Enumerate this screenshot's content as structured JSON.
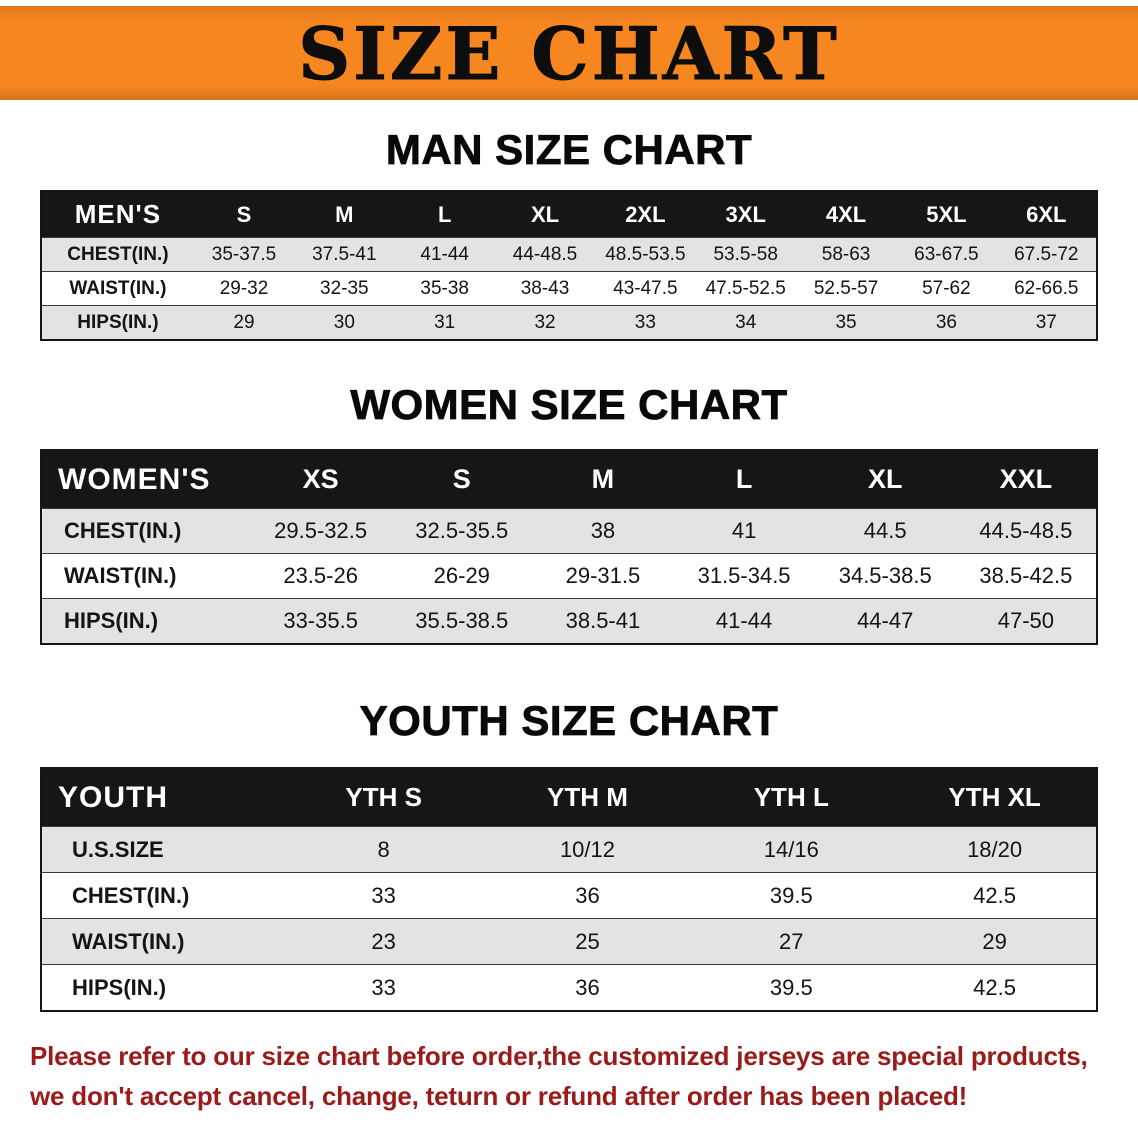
{
  "banner": {
    "title": "SIZE CHART"
  },
  "colors": {
    "banner_orange": "#f6861f",
    "header_black": "#161616",
    "row_shade": "#e3e3e3",
    "disclaimer_red": "#9b1a1a",
    "text_black": "#141414"
  },
  "sections": [
    {
      "kind": "men",
      "heading": "MAN SIZE CHART",
      "table": {
        "header": [
          "MEN'S",
          "S",
          "M",
          "L",
          "XL",
          "2XL",
          "3XL",
          "4XL",
          "5XL",
          "6XL"
        ],
        "rows": [
          {
            "label": "CHEST(IN.)",
            "cells": [
              "35-37.5",
              "37.5-41",
              "41-44",
              "44-48.5",
              "48.5-53.5",
              "53.5-58",
              "58-63",
              "63-67.5",
              "67.5-72"
            ]
          },
          {
            "label": "WAIST(IN.)",
            "cells": [
              "29-32",
              "32-35",
              "35-38",
              "38-43",
              "43-47.5",
              "47.5-52.5",
              "52.5-57",
              "57-62",
              "62-66.5"
            ]
          },
          {
            "label": "HIPS(IN.)",
            "cells": [
              "29",
              "30",
              "31",
              "32",
              "33",
              "34",
              "35",
              "36",
              "37"
            ]
          }
        ]
      }
    },
    {
      "kind": "women",
      "heading": "WOMEN SIZE CHART",
      "table": {
        "header": [
          "WOMEN'S",
          "XS",
          "S",
          "M",
          "L",
          "XL",
          "XXL"
        ],
        "rows": [
          {
            "label": "CHEST(IN.)",
            "cells": [
              "29.5-32.5",
              "32.5-35.5",
              "38",
              "41",
              "44.5",
              "44.5-48.5"
            ]
          },
          {
            "label": "WAIST(IN.)",
            "cells": [
              "23.5-26",
              "26-29",
              "29-31.5",
              "31.5-34.5",
              "34.5-38.5",
              "38.5-42.5"
            ]
          },
          {
            "label": "HIPS(IN.)",
            "cells": [
              "33-35.5",
              "35.5-38.5",
              "38.5-41",
              "41-44",
              "44-47",
              "47-50"
            ]
          }
        ]
      }
    },
    {
      "kind": "youth",
      "heading": "YOUTH SIZE CHART",
      "table": {
        "header": [
          "YOUTH",
          "YTH S",
          "YTH M",
          "YTH L",
          "YTH XL"
        ],
        "rows": [
          {
            "label": "U.S.SIZE",
            "cells": [
              "8",
              "10/12",
              "14/16",
              "18/20"
            ]
          },
          {
            "label": "CHEST(IN.)",
            "cells": [
              "33",
              "36",
              "39.5",
              "42.5"
            ]
          },
          {
            "label": "WAIST(IN.)",
            "cells": [
              "23",
              "25",
              "27",
              "29"
            ]
          },
          {
            "label": "HIPS(IN.)",
            "cells": [
              "33",
              "36",
              "39.5",
              "42.5"
            ]
          }
        ]
      }
    }
  ],
  "disclaimer": {
    "lines": [
      "Please refer to our size chart before order,the customized jerseys are special products,",
      "we don't accept cancel, change, teturn or refund after order has been placed!"
    ]
  }
}
